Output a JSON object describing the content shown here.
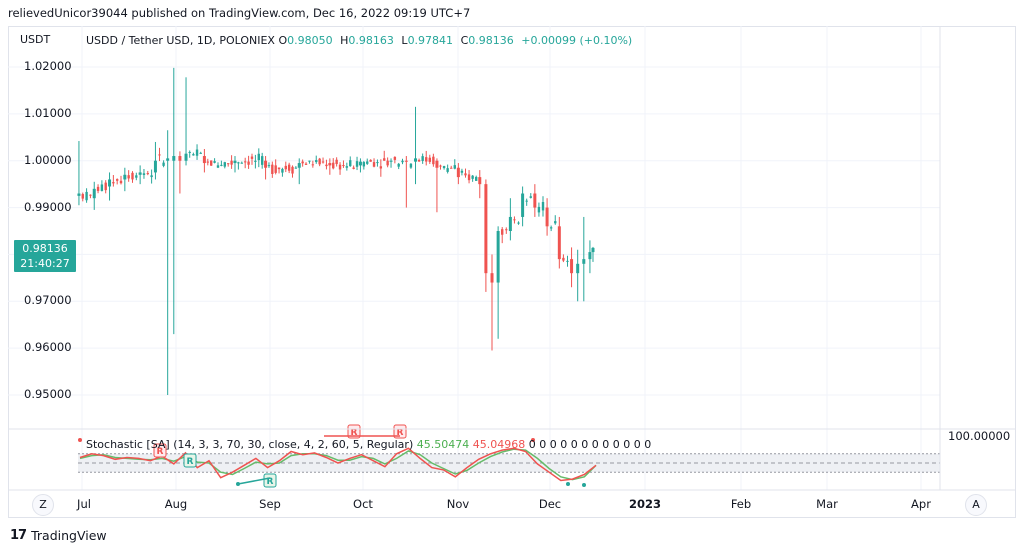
{
  "header": {
    "publish_line": "relievedUnicor39044 published on TradingView.com, Dec 16, 2022 09:19 UTC+7"
  },
  "chart_data": {
    "type": "candlestick",
    "axis_currency": "USDT",
    "legend": {
      "symbol": "USDD / Tether USD, 1D, POLONIEX",
      "open_key": "O",
      "open": "0.98050",
      "high_key": "H",
      "high": "0.98163",
      "low_key": "L",
      "low": "0.97841",
      "close_key": "C",
      "close": "0.98136",
      "change": "+0.00099 (+0.10%)"
    },
    "last_price": "0.98136",
    "countdown": "21:40:27",
    "y_ticks": [
      "1.02000",
      "1.01000",
      "1.00000",
      "0.99000",
      "0.97000",
      "0.96000",
      "0.95000"
    ],
    "y_tick_values": [
      1.02,
      1.01,
      1.0,
      0.99,
      0.97,
      0.96,
      0.95
    ],
    "ylim": [
      0.945,
      1.024
    ],
    "x_ticks": [
      "Jul",
      "Aug",
      "Sep",
      "Oct",
      "Nov",
      "Dec",
      "2023",
      "Feb",
      "Mar",
      "Apr"
    ],
    "x_tick_bold": "2023",
    "grid": true,
    "candles_approx": [
      {
        "date": "2022-06-30",
        "o": 0.9925,
        "h": 1.0042,
        "l": 0.9905,
        "c": 0.993
      },
      {
        "date": "2022-07-05",
        "o": 0.992,
        "h": 0.9955,
        "l": 0.9895,
        "c": 0.994
      },
      {
        "date": "2022-07-10",
        "o": 0.9945,
        "h": 0.9975,
        "l": 0.9915,
        "c": 0.996
      },
      {
        "date": "2022-07-15",
        "o": 0.996,
        "h": 0.9985,
        "l": 0.9935,
        "c": 0.997
      },
      {
        "date": "2022-07-20",
        "o": 0.997,
        "h": 0.999,
        "l": 0.995,
        "c": 0.9975
      },
      {
        "date": "2022-07-25",
        "o": 0.9975,
        "h": 1.004,
        "l": 0.996,
        "c": 1.0
      },
      {
        "date": "2022-07-29",
        "o": 1.0,
        "h": 1.0065,
        "l": 0.95,
        "c": 1.0005
      },
      {
        "date": "2022-07-31",
        "o": 1.0,
        "h": 1.0198,
        "l": 0.963,
        "c": 1.001
      },
      {
        "date": "2022-08-02",
        "o": 1.001,
        "h": 1.002,
        "l": 0.993,
        "c": 1.0
      },
      {
        "date": "2022-08-04",
        "o": 1.0,
        "h": 1.0178,
        "l": 0.999,
        "c": 1.0015
      },
      {
        "date": "2022-08-10",
        "o": 1.001,
        "h": 1.0025,
        "l": 0.9975,
        "c": 0.9995
      },
      {
        "date": "2022-08-20",
        "o": 0.9995,
        "h": 1.001,
        "l": 0.9975,
        "c": 1.0
      },
      {
        "date": "2022-08-30",
        "o": 1.0,
        "h": 1.001,
        "l": 0.996,
        "c": 0.9985
      },
      {
        "date": "2022-09-10",
        "o": 0.9985,
        "h": 1.0005,
        "l": 0.995,
        "c": 0.9995
      },
      {
        "date": "2022-09-20",
        "o": 0.9995,
        "h": 1.0005,
        "l": 0.997,
        "c": 0.999
      },
      {
        "date": "2022-09-30",
        "o": 0.999,
        "h": 1.0005,
        "l": 0.9975,
        "c": 0.9998
      },
      {
        "date": "2022-10-10",
        "o": 0.9998,
        "h": 1.0005,
        "l": 0.9985,
        "c": 1.0
      },
      {
        "date": "2022-10-15",
        "o": 1.0,
        "h": 1.001,
        "l": 0.99,
        "c": 0.9998
      },
      {
        "date": "2022-10-18",
        "o": 0.9998,
        "h": 1.0115,
        "l": 0.995,
        "c": 1.0005
      },
      {
        "date": "2022-10-25",
        "o": 1.0,
        "h": 1.0005,
        "l": 0.989,
        "c": 0.9985
      },
      {
        "date": "2022-11-01",
        "o": 0.9985,
        "h": 0.9995,
        "l": 0.995,
        "c": 0.9965
      },
      {
        "date": "2022-11-08",
        "o": 0.9965,
        "h": 0.998,
        "l": 0.992,
        "c": 0.995
      },
      {
        "date": "2022-11-10",
        "o": 0.995,
        "h": 0.996,
        "l": 0.972,
        "c": 0.976
      },
      {
        "date": "2022-11-12",
        "o": 0.976,
        "h": 0.98,
        "l": 0.9595,
        "c": 0.974
      },
      {
        "date": "2022-11-14",
        "o": 0.974,
        "h": 0.986,
        "l": 0.962,
        "c": 0.985
      },
      {
        "date": "2022-11-18",
        "o": 0.985,
        "h": 0.992,
        "l": 0.983,
        "c": 0.988
      },
      {
        "date": "2022-11-22",
        "o": 0.988,
        "h": 0.9945,
        "l": 0.986,
        "c": 0.993
      },
      {
        "date": "2022-11-26",
        "o": 0.993,
        "h": 0.995,
        "l": 0.988,
        "c": 0.99
      },
      {
        "date": "2022-11-30",
        "o": 0.99,
        "h": 0.992,
        "l": 0.984,
        "c": 0.986
      },
      {
        "date": "2022-12-04",
        "o": 0.986,
        "h": 0.988,
        "l": 0.977,
        "c": 0.979
      },
      {
        "date": "2022-12-08",
        "o": 0.979,
        "h": 0.9815,
        "l": 0.973,
        "c": 0.976
      },
      {
        "date": "2022-12-10",
        "o": 0.976,
        "h": 0.981,
        "l": 0.97,
        "c": 0.978
      },
      {
        "date": "2022-12-12",
        "o": 0.978,
        "h": 0.988,
        "l": 0.97,
        "c": 0.979
      },
      {
        "date": "2022-12-14",
        "o": 0.979,
        "h": 0.983,
        "l": 0.976,
        "c": 0.9805
      },
      {
        "date": "2022-12-15",
        "o": 0.9805,
        "h": 0.9816,
        "l": 0.9784,
        "c": 0.9814
      }
    ],
    "indicator": {
      "label": "Stochastic [SA] (14, 3, 3, 70, 30, close, 4, 2, 60, 5, Regular)",
      "k_value": "45.50474",
      "d_value": "45.04968",
      "trailing_values": [
        "0",
        "0",
        "0",
        "0",
        "0",
        "0",
        "0",
        "0",
        "0",
        "0",
        "0",
        "0"
      ],
      "top_value_label": "100.00000",
      "upper_band": 70,
      "lower_band": 30,
      "k_series": [
        62,
        70,
        66,
        58,
        62,
        60,
        55,
        65,
        48,
        72,
        40,
        55,
        18,
        30,
        45,
        60,
        40,
        55,
        75,
        68,
        72,
        62,
        50,
        60,
        68,
        55,
        42,
        70,
        82,
        60,
        40,
        35,
        20,
        40,
        58,
        70,
        78,
        82,
        75,
        48,
        30,
        12,
        15,
        25,
        45
      ],
      "d_series": [
        60,
        66,
        68,
        62,
        60,
        58,
        57,
        60,
        54,
        64,
        52,
        50,
        30,
        25,
        38,
        52,
        48,
        50,
        66,
        70,
        70,
        66,
        56,
        56,
        64,
        60,
        48,
        60,
        76,
        68,
        50,
        38,
        26,
        34,
        50,
        64,
        74,
        80,
        78,
        60,
        38,
        20,
        14,
        20,
        45
      ],
      "signal_markers": [
        "R",
        "R",
        "R",
        "R",
        "R"
      ]
    },
    "colors": {
      "up": "#26a69a",
      "down": "#ef5350",
      "k_line": "#ef5350",
      "d_line": "#66bb6a",
      "grid": "#f0f3fa",
      "band_fill": "#eef0f4"
    }
  },
  "buttons": {
    "left_corner": "Z",
    "right_corner": "A"
  },
  "footer": {
    "logo_mark": "17",
    "brand": "TradingView"
  }
}
